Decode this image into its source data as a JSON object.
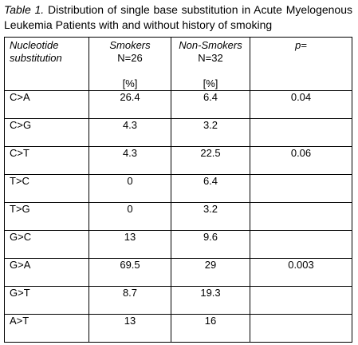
{
  "caption": {
    "label": "Table 1.",
    "text": "Distribution of single base substitution in Acute Myelogenous Leukemia Patients with and without history of smoking"
  },
  "table": {
    "headers": {
      "nucleotide_line1": "Nucleotide",
      "nucleotide_line2": "substitution",
      "smokers": "Smokers",
      "smokers_n": "N=26",
      "smokers_unit": "[%]",
      "non_smokers": "Non-Smokers",
      "non_smokers_n": "N=32",
      "non_smokers_unit": "[%]",
      "p": "p="
    },
    "rows": [
      {
        "sub": "C>A",
        "smokers": "26.4",
        "non_smokers": "6.4",
        "p": "0.04"
      },
      {
        "sub": "C>G",
        "smokers": "4.3",
        "non_smokers": "3.2",
        "p": ""
      },
      {
        "sub": "C>T",
        "smokers": "4.3",
        "non_smokers": "22.5",
        "p": "0.06"
      },
      {
        "sub": "T>C",
        "smokers": "0",
        "non_smokers": "6.4",
        "p": ""
      },
      {
        "sub": "T>G",
        "smokers": "0",
        "non_smokers": "3.2",
        "p": ""
      },
      {
        "sub": "G>C",
        "smokers": "13",
        "non_smokers": "9.6",
        "p": ""
      },
      {
        "sub": "G>A",
        "smokers": "69.5",
        "non_smokers": "29",
        "p": "0.003"
      },
      {
        "sub": "G>T",
        "smokers": "8.7",
        "non_smokers": "19.3",
        "p": ""
      },
      {
        "sub": "A>T",
        "smokers": "13",
        "non_smokers": "16",
        "p": ""
      }
    ]
  }
}
